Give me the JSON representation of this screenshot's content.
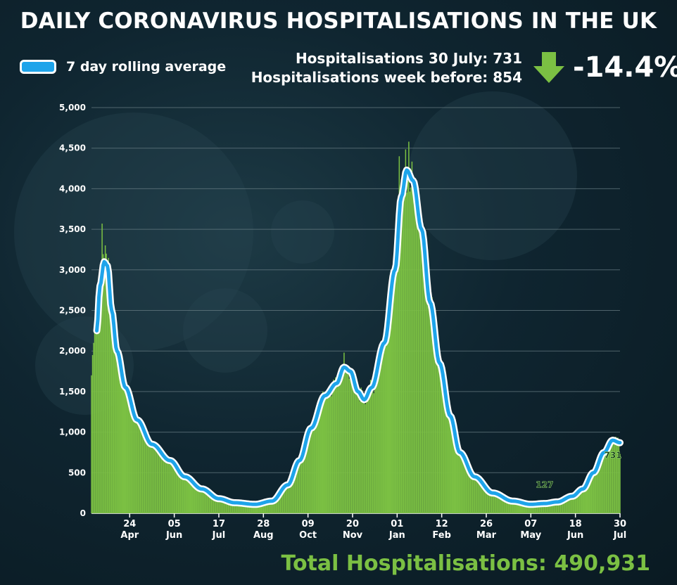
{
  "header": {
    "title": "DAILY CORONAVIRUS HOSPITALISATIONS IN THE UK",
    "legend_label": "7 day rolling average",
    "stat_line_1": "Hospitalisations 30 July: 731",
    "stat_line_2": "Hospitalisations week before: 854",
    "change": "-14.4%",
    "total": "Total Hospitalisations: 490,931"
  },
  "colors": {
    "bar": "#7bc043",
    "line": "#1ea4ea",
    "line_outline": "#ffffff",
    "grid": "#6b7f86",
    "axis_text": "#ffffff",
    "arrow": "#7bc043"
  },
  "icons": {
    "change_icon": "down-arrow-icon"
  },
  "chart_data": {
    "type": "bar",
    "title": "DAILY CORONAVIRUS HOSPITALISATIONS IN THE UK",
    "xlabel": "",
    "ylabel": "",
    "ylim": [
      0,
      5000
    ],
    "yticks": [
      0,
      500,
      1000,
      1500,
      2000,
      2500,
      3000,
      3500,
      4000,
      4500,
      5000
    ],
    "ytick_labels": [
      "0",
      "500",
      "1,000",
      "1,500",
      "2,000",
      "2,500",
      "3,000",
      "3,500",
      "4,000",
      "4,500",
      "5,000"
    ],
    "x_start": "2020-03-19",
    "x_end": "2021-07-30",
    "x_ticks": [
      {
        "date": "2020-04-24",
        "day": "24",
        "month": "Apr"
      },
      {
        "date": "2020-06-05",
        "day": "05",
        "month": "Jun"
      },
      {
        "date": "2020-07-17",
        "day": "17",
        "month": "Jul"
      },
      {
        "date": "2020-08-28",
        "day": "28",
        "month": "Aug"
      },
      {
        "date": "2020-10-09",
        "day": "09",
        "month": "Oct"
      },
      {
        "date": "2020-11-20",
        "day": "20",
        "month": "Nov"
      },
      {
        "date": "2021-01-01",
        "day": "01",
        "month": "Jan"
      },
      {
        "date": "2021-02-12",
        "day": "12",
        "month": "Feb"
      },
      {
        "date": "2021-03-26",
        "day": "26",
        "month": "Mar"
      },
      {
        "date": "2021-05-07",
        "day": "07",
        "month": "May"
      },
      {
        "date": "2021-06-18",
        "day": "18",
        "month": "Jun"
      },
      {
        "date": "2021-07-30",
        "day": "30",
        "month": "Jul"
      }
    ],
    "grid": true,
    "legend": "top-left",
    "series": [
      {
        "name": "7 day rolling average",
        "type": "line",
        "points": [
          {
            "date": "2020-03-24",
            "value": 2250
          },
          {
            "date": "2020-03-27",
            "value": 2800
          },
          {
            "date": "2020-03-31",
            "value": 3100
          },
          {
            "date": "2020-04-03",
            "value": 3050
          },
          {
            "date": "2020-04-07",
            "value": 2500
          },
          {
            "date": "2020-04-12",
            "value": 2000
          },
          {
            "date": "2020-04-20",
            "value": 1550
          },
          {
            "date": "2020-05-01",
            "value": 1150
          },
          {
            "date": "2020-05-15",
            "value": 850
          },
          {
            "date": "2020-06-01",
            "value": 650
          },
          {
            "date": "2020-06-15",
            "value": 450
          },
          {
            "date": "2020-07-01",
            "value": 300
          },
          {
            "date": "2020-07-17",
            "value": 180
          },
          {
            "date": "2020-08-01",
            "value": 130
          },
          {
            "date": "2020-08-20",
            "value": 110
          },
          {
            "date": "2020-09-05",
            "value": 150
          },
          {
            "date": "2020-09-20",
            "value": 350
          },
          {
            "date": "2020-10-01",
            "value": 650
          },
          {
            "date": "2020-10-12",
            "value": 1050
          },
          {
            "date": "2020-10-25",
            "value": 1450
          },
          {
            "date": "2020-11-05",
            "value": 1600
          },
          {
            "date": "2020-11-12",
            "value": 1800
          },
          {
            "date": "2020-11-18",
            "value": 1750
          },
          {
            "date": "2020-11-25",
            "value": 1500
          },
          {
            "date": "2020-12-01",
            "value": 1400
          },
          {
            "date": "2020-12-08",
            "value": 1550
          },
          {
            "date": "2020-12-20",
            "value": 2100
          },
          {
            "date": "2020-12-30",
            "value": 3000
          },
          {
            "date": "2021-01-05",
            "value": 3900
          },
          {
            "date": "2021-01-10",
            "value": 4230
          },
          {
            "date": "2021-01-16",
            "value": 4100
          },
          {
            "date": "2021-01-24",
            "value": 3500
          },
          {
            "date": "2021-02-01",
            "value": 2600
          },
          {
            "date": "2021-02-10",
            "value": 1850
          },
          {
            "date": "2021-02-20",
            "value": 1200
          },
          {
            "date": "2021-03-01",
            "value": 750
          },
          {
            "date": "2021-03-15",
            "value": 450
          },
          {
            "date": "2021-04-01",
            "value": 250
          },
          {
            "date": "2021-04-20",
            "value": 150
          },
          {
            "date": "2021-05-07",
            "value": 110
          },
          {
            "date": "2021-05-20",
            "value": 120
          },
          {
            "date": "2021-06-01",
            "value": 140
          },
          {
            "date": "2021-06-15",
            "value": 210
          },
          {
            "date": "2021-06-25",
            "value": 300
          },
          {
            "date": "2021-07-05",
            "value": 500
          },
          {
            "date": "2021-07-15",
            "value": 750
          },
          {
            "date": "2021-07-23",
            "value": 900
          },
          {
            "date": "2021-07-30",
            "value": 870
          }
        ]
      },
      {
        "name": "Daily hospitalisations",
        "type": "bar",
        "peaks": [
          {
            "date": "2020-03-19",
            "value": 1700
          },
          {
            "date": "2020-03-29",
            "value": 3570
          },
          {
            "date": "2020-04-02",
            "value": 3200
          },
          {
            "date": "2020-11-12",
            "value": 1980
          },
          {
            "date": "2021-01-03",
            "value": 4400
          },
          {
            "date": "2021-01-12",
            "value": 4580
          },
          {
            "date": "2021-05-20",
            "value": 127
          },
          {
            "date": "2021-07-30",
            "value": 731
          }
        ]
      }
    ],
    "annotations": [
      {
        "date": "2021-05-20",
        "value": 127,
        "label": "127"
      },
      {
        "date": "2021-07-30",
        "value": 731,
        "label": "731"
      }
    ]
  }
}
